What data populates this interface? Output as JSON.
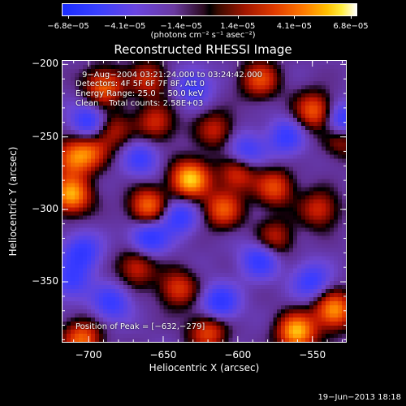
{
  "chart_data": {
    "type": "heatmap",
    "title": "Reconstructed RHESSI Image",
    "xlabel": "Heliocentric X (arcsec)",
    "ylabel": "Heliocentric Y (arcsec)",
    "xlim": [
      -718,
      -527
    ],
    "ylim": [
      -392,
      -197
    ],
    "xticks": [
      {
        "value": -700,
        "label": "−700"
      },
      {
        "value": -650,
        "label": "−650"
      },
      {
        "value": -600,
        "label": "−600"
      },
      {
        "value": -550,
        "label": "−550"
      }
    ],
    "yticks": [
      {
        "value": -200,
        "label": "−200"
      },
      {
        "value": -250,
        "label": "−250"
      },
      {
        "value": -300,
        "label": "−300"
      },
      {
        "value": -350,
        "label": "−350"
      }
    ],
    "colorbar": {
      "ticks": [
        "−6.8e−05",
        "−4.1e−05",
        "−1.4e−05",
        "1.4e−05",
        "4.1e−05",
        "6.8e−05"
      ],
      "units": "(photons cm⁻² s⁻¹ asec⁻²)",
      "range": [
        -6.8e-05,
        6.8e-05
      ]
    },
    "annotations": {
      "time_range": "9−Aug−2004 03:21:24.000 to 03:24:42.000",
      "detectors": "Detectors: 4F 5F 6F 7F 8F, Att 0",
      "energy": "Energy Range: 25.0 − 50.0 keV",
      "method": "Clean    Total counts: 2.58E+03",
      "peak": "Position of Peak = [−632,−279]"
    },
    "peak": {
      "x": -632,
      "y": -279
    },
    "hotspots": [
      {
        "x": -632,
        "y": -279,
        "v": 1.0
      },
      {
        "x": -660,
        "y": -298,
        "v": 0.75
      },
      {
        "x": -690,
        "y": -215,
        "v": 0.7
      },
      {
        "x": -712,
        "y": -290,
        "v": 0.9
      },
      {
        "x": -712,
        "y": -265,
        "v": 0.6
      },
      {
        "x": -700,
        "y": -260,
        "v": 0.55
      },
      {
        "x": -655,
        "y": -240,
        "v": 0.5
      },
      {
        "x": -615,
        "y": -245,
        "v": 0.45
      },
      {
        "x": -610,
        "y": -300,
        "v": 0.65
      },
      {
        "x": -575,
        "y": -285,
        "v": 0.6
      },
      {
        "x": -548,
        "y": -232,
        "v": 0.7
      },
      {
        "x": -530,
        "y": -250,
        "v": 0.55
      },
      {
        "x": -585,
        "y": -210,
        "v": 0.6
      },
      {
        "x": -545,
        "y": -300,
        "v": 0.5
      },
      {
        "x": -560,
        "y": -385,
        "v": 0.95
      },
      {
        "x": -535,
        "y": -370,
        "v": 0.85
      },
      {
        "x": -620,
        "y": -385,
        "v": 0.6
      },
      {
        "x": -640,
        "y": -355,
        "v": 0.55
      },
      {
        "x": -668,
        "y": -340,
        "v": 0.5
      },
      {
        "x": -705,
        "y": -390,
        "v": 0.7
      },
      {
        "x": -575,
        "y": -320,
        "v": 0.45
      },
      {
        "x": -660,
        "y": -210,
        "v": 0.5
      },
      {
        "x": -600,
        "y": -275,
        "v": 0.55
      },
      {
        "x": -685,
        "y": -245,
        "v": 0.45
      }
    ],
    "coldspots": [
      {
        "x": -700,
        "y": -240,
        "v": -0.55
      },
      {
        "x": -705,
        "y": -330,
        "v": -0.5
      },
      {
        "x": -660,
        "y": -320,
        "v": -0.55
      },
      {
        "x": -640,
        "y": -305,
        "v": -0.5
      },
      {
        "x": -612,
        "y": -365,
        "v": -0.55
      },
      {
        "x": -585,
        "y": -335,
        "v": -0.5
      },
      {
        "x": -567,
        "y": -250,
        "v": -0.45
      },
      {
        "x": -530,
        "y": -240,
        "v": -0.7
      },
      {
        "x": -595,
        "y": -260,
        "v": -0.45
      },
      {
        "x": -665,
        "y": -265,
        "v": -0.4
      },
      {
        "x": -630,
        "y": -215,
        "v": -0.4
      },
      {
        "x": -550,
        "y": -350,
        "v": -0.45
      },
      {
        "x": -685,
        "y": -365,
        "v": -0.45
      },
      {
        "x": -712,
        "y": -350,
        "v": -0.4
      }
    ]
  },
  "footer": "19−Jun−2013 18:18"
}
